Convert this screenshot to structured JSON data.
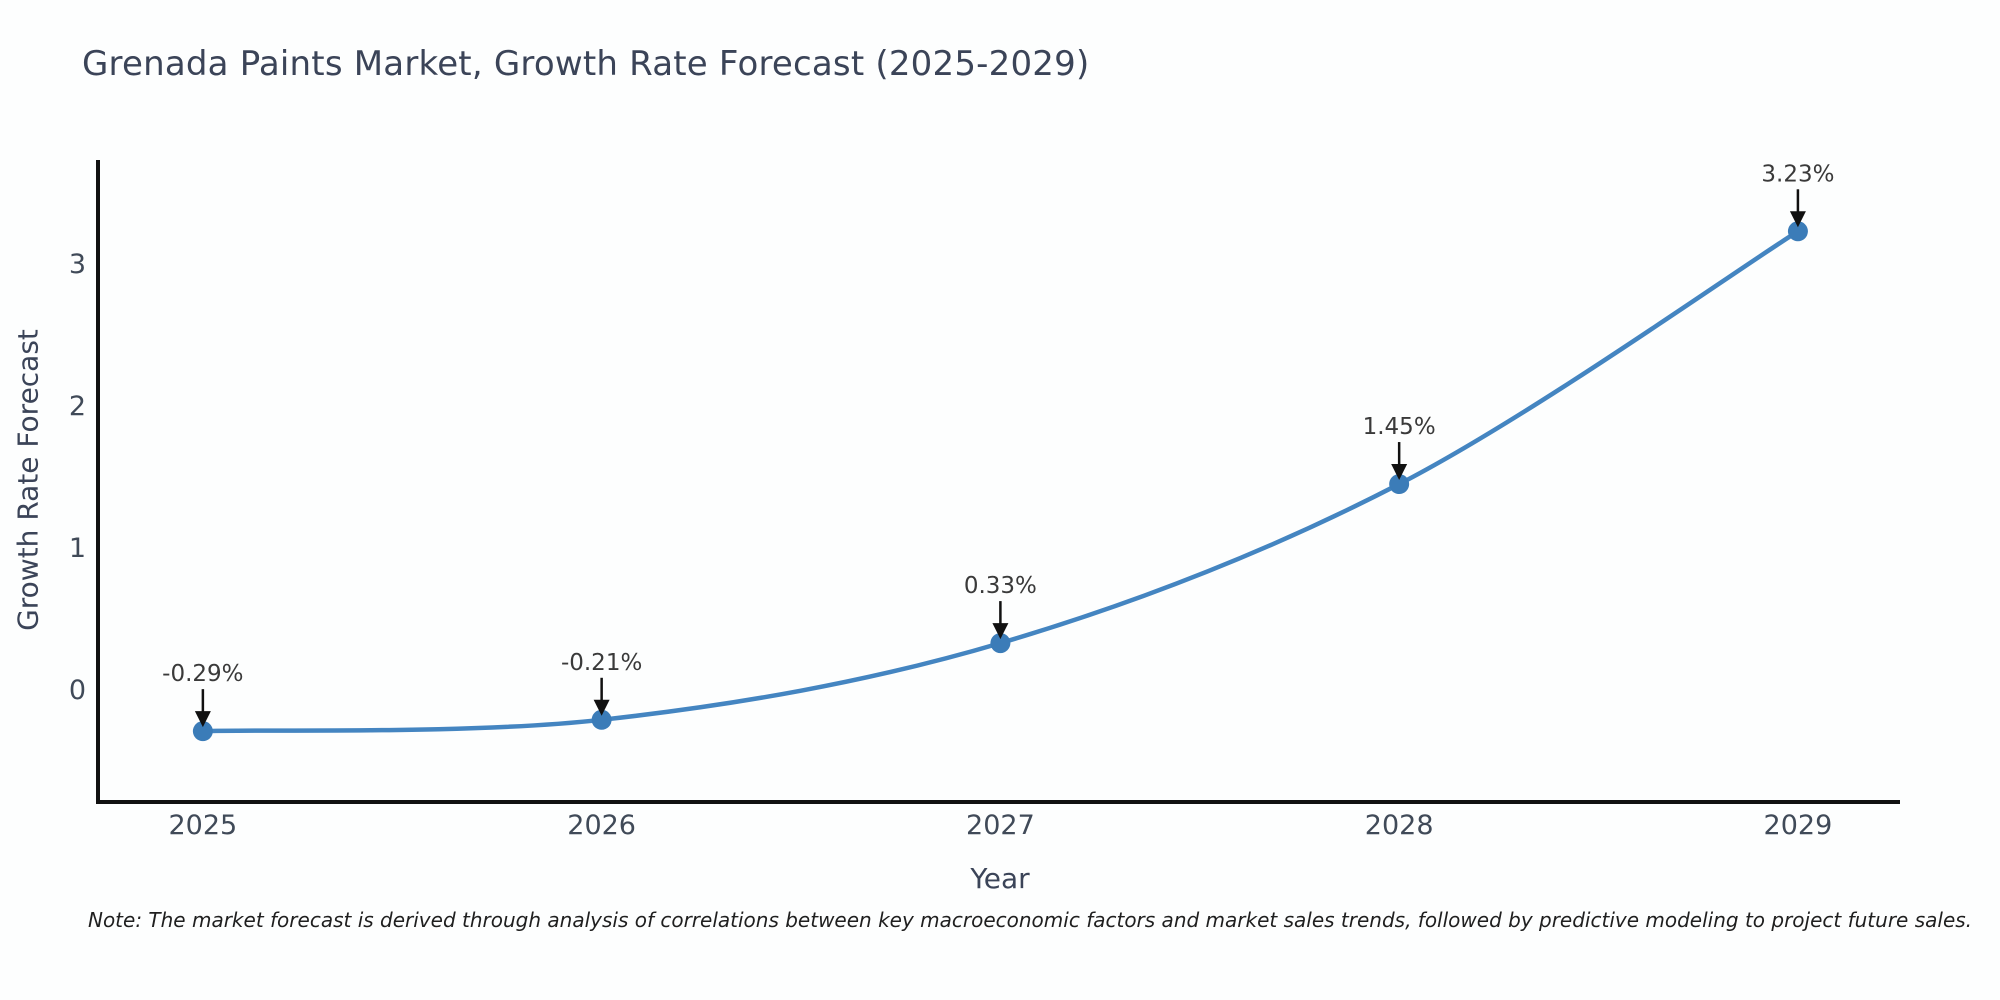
{
  "title": "Grenada Paints Market, Growth Rate Forecast (2025-2029)",
  "note": "Note: The market forecast is derived through analysis of correlations between key macroeconomic factors and market sales trends, followed by predictive modeling to project future sales.",
  "chart_data": {
    "type": "line",
    "title": "Grenada Paints Market, Growth Rate Forecast (2025-2029)",
    "xlabel": "Year",
    "ylabel": "Growth Rate Forecast",
    "x": [
      2025,
      2026,
      2027,
      2028,
      2029
    ],
    "values": [
      -0.29,
      -0.21,
      0.33,
      1.45,
      3.23
    ],
    "point_labels": [
      "-0.29%",
      "-0.21%",
      "0.33%",
      "1.45%",
      "3.23%"
    ],
    "x_tick_labels": [
      "2025",
      "2026",
      "2027",
      "2028",
      "2029"
    ],
    "y_ticks": [
      0,
      1,
      2,
      3
    ],
    "y_tick_labels": [
      "0",
      "1",
      "2",
      "3"
    ],
    "xlim": [
      2024.737,
      2029.256
    ],
    "ylim": [
      -0.789,
      3.732
    ],
    "grid": false,
    "legend": "none"
  },
  "colors": {
    "line": "#4485c1",
    "marker": "#3b7cb8",
    "arrow": "#111111",
    "axis_line": "#111111",
    "title_text": "#3b4458",
    "tick_text": "#404a58",
    "annotation_text": "#3a3a3a"
  }
}
